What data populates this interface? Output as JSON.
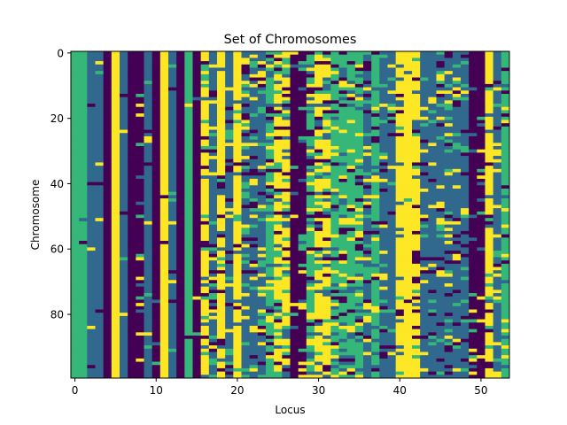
{
  "chart_data": {
    "type": "heatmap",
    "title": "Set of Chromosomes",
    "xlabel": "Locus",
    "ylabel": "Chromosome",
    "n_rows": 100,
    "n_cols": 54,
    "xlim": [
      -0.5,
      53.5
    ],
    "ylim": [
      99.5,
      -0.5
    ],
    "x_ticks": [
      0,
      10,
      20,
      30,
      40,
      50
    ],
    "y_ticks": [
      0,
      20,
      40,
      60,
      80
    ],
    "x_tick_labels": [
      "0",
      "10",
      "20",
      "30",
      "40",
      "50"
    ],
    "y_tick_labels": [
      "0",
      "20",
      "40",
      "60",
      "80"
    ],
    "colormap": "viridis",
    "value_levels": [
      0,
      1,
      2,
      3
    ],
    "level_colors": [
      "#440154",
      "#31688e",
      "#35b779",
      "#fde725"
    ],
    "column_base_values": [
      2,
      2,
      1,
      1,
      0,
      3,
      1,
      0,
      0,
      1,
      0,
      3,
      1,
      0,
      2,
      0,
      3,
      1,
      3,
      1,
      3,
      1,
      1,
      1,
      2,
      3,
      3,
      0,
      0,
      2,
      3,
      3,
      2,
      2,
      2,
      2,
      1,
      2,
      1,
      1,
      3,
      3,
      3,
      1,
      1,
      1,
      1,
      1,
      1,
      0,
      0,
      3,
      1,
      2
    ],
    "column_noise": [
      0.0,
      0.05,
      0.08,
      0.1,
      0.0,
      0.0,
      0.05,
      0.0,
      0.12,
      0.1,
      0.05,
      0.02,
      0.1,
      0.02,
      0.02,
      0.04,
      0.5,
      0.5,
      0.3,
      0.3,
      0.2,
      0.5,
      0.5,
      0.5,
      0.5,
      0.5,
      0.5,
      0.1,
      0.3,
      0.5,
      0.4,
      0.5,
      0.5,
      0.5,
      0.5,
      0.5,
      0.5,
      0.3,
      0.3,
      0.2,
      0.3,
      0.1,
      0.3,
      0.2,
      0.3,
      0.4,
      0.4,
      0.4,
      0.3,
      0.2,
      0.1,
      0.2,
      0.3,
      0.4
    ],
    "matrix_note": "Each cell holds one of four integer allele values 0-3; per-locus dominant value given in column_base_values, with per-locus fraction of cells deviating given in column_noise."
  }
}
